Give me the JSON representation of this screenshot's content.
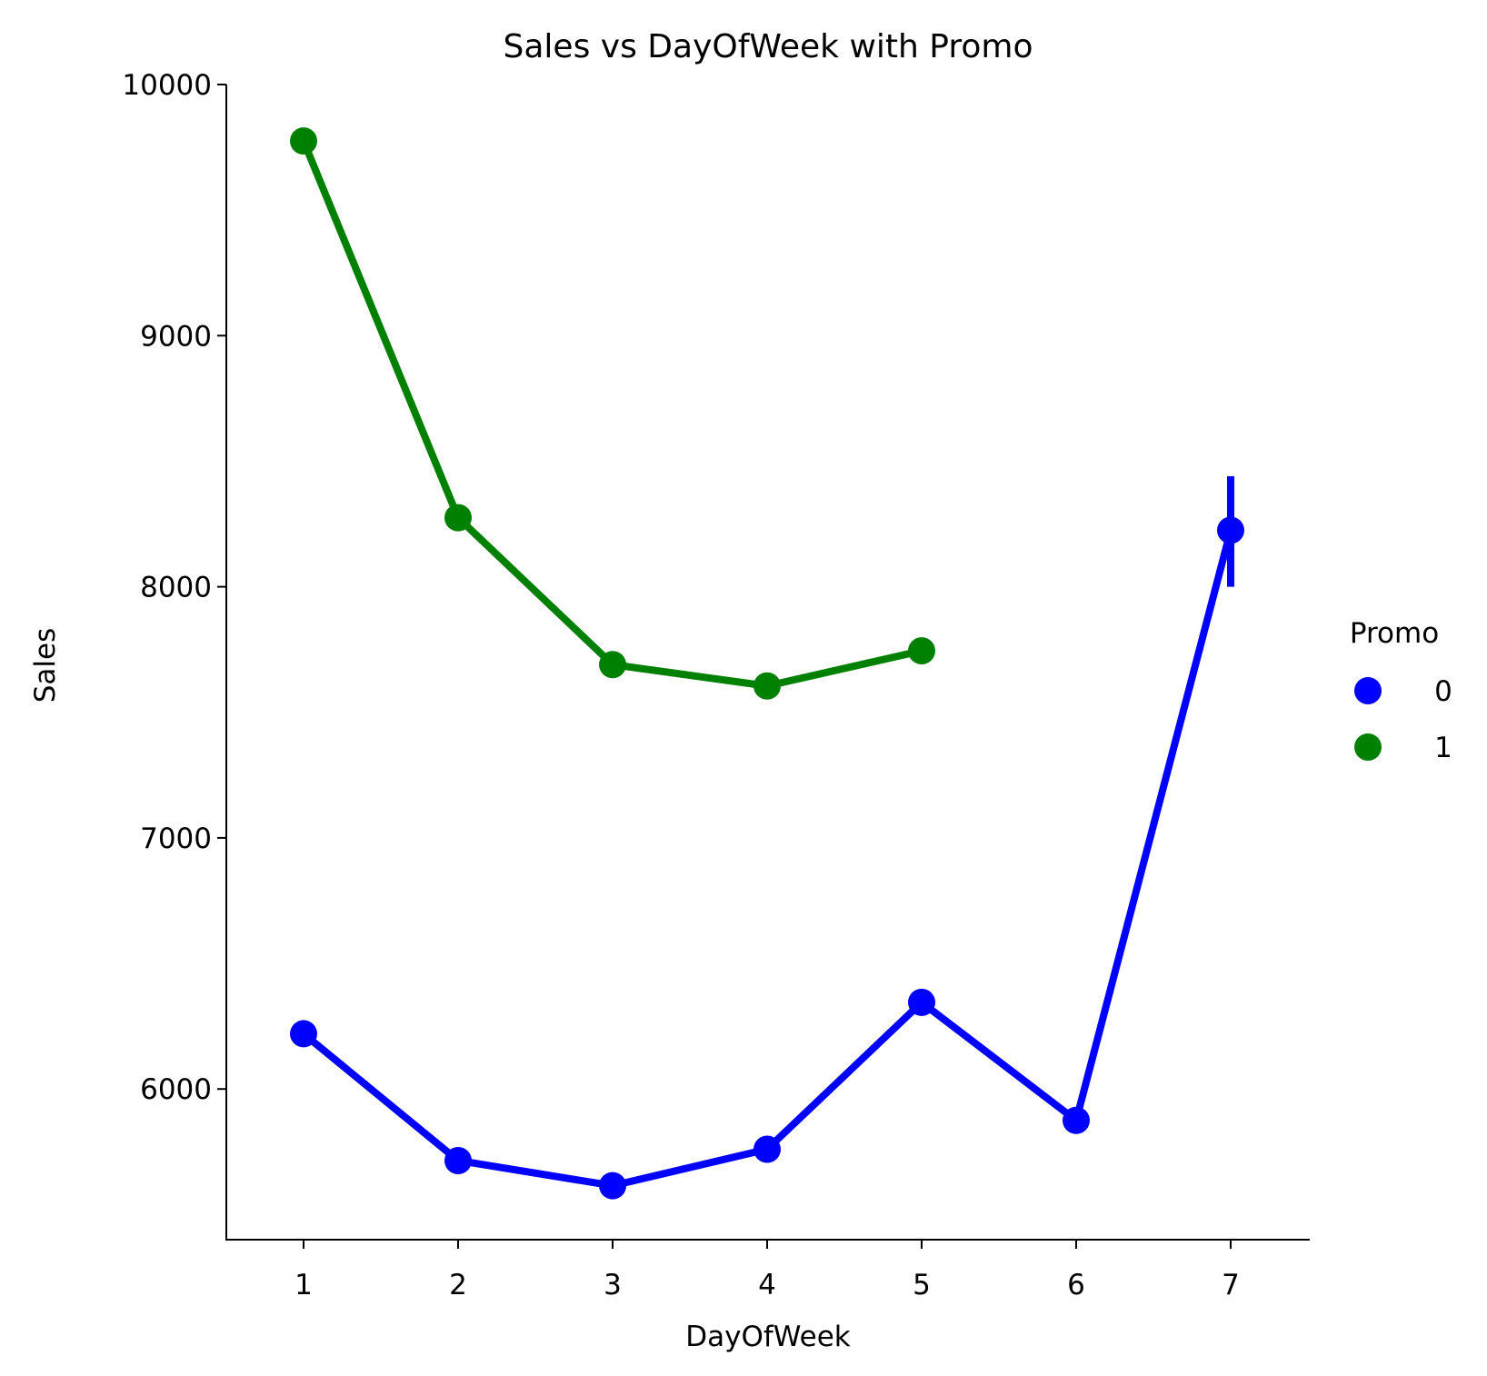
{
  "chart_data": {
    "type": "line",
    "title": "Sales vs DayOfWeek with Promo",
    "xlabel": "DayOfWeek",
    "ylabel": "Sales",
    "categories": [
      "1",
      "2",
      "3",
      "4",
      "5",
      "6",
      "7"
    ],
    "ylim": [
      5400,
      10000
    ],
    "yticks": [
      6000,
      7000,
      8000,
      9000,
      10000
    ],
    "grid": false,
    "legend": {
      "title": "Promo",
      "placement": "right"
    },
    "series": [
      {
        "name": "0",
        "color": "#0000ff",
        "values": [
          6220,
          5715,
          5615,
          5760,
          6345,
          5875,
          8225
        ],
        "error_bars": [
          null,
          null,
          null,
          null,
          null,
          null,
          [
            8000,
            8440
          ]
        ]
      },
      {
        "name": "1",
        "color": "#008000",
        "values": [
          9775,
          8275,
          7690,
          7605,
          7745,
          null,
          null
        ],
        "error_bars": [
          null,
          null,
          null,
          null,
          null,
          null,
          null
        ]
      }
    ]
  }
}
